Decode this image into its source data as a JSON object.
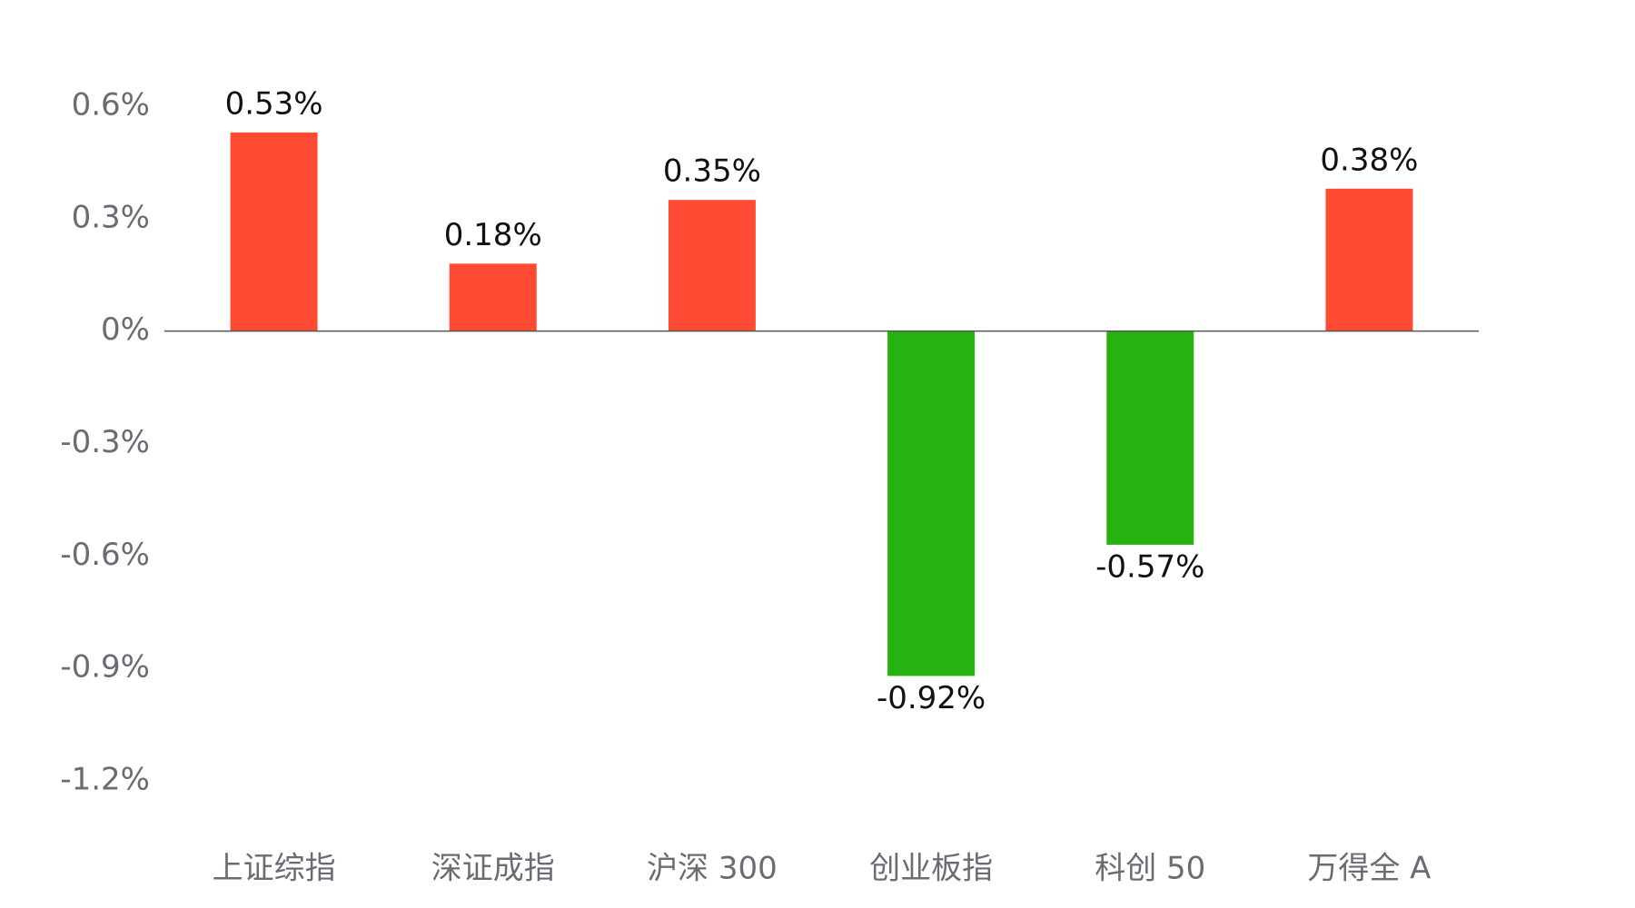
{
  "chart_data": {
    "type": "bar",
    "categories": [
      "上证综指",
      "深证成指",
      "沪深 300",
      "创业板指",
      "科创 50",
      "万得全 A"
    ],
    "values": [
      0.53,
      0.18,
      0.35,
      -0.92,
      -0.57,
      0.38
    ],
    "value_labels": [
      "0.53%",
      "0.18%",
      "0.35%",
      "-0.92%",
      "-0.57%",
      "0.38%"
    ],
    "positive_color": "#ff4b33",
    "negative_color": "#27b30f",
    "ylim": [
      -1.2,
      0.6
    ],
    "yticks": [
      {
        "value": 0.6,
        "label": "0.6%"
      },
      {
        "value": 0.3,
        "label": "0.3%"
      },
      {
        "value": 0,
        "label": "0%"
      },
      {
        "value": -0.3,
        "label": "-0.3%"
      },
      {
        "value": -0.6,
        "label": "-0.6%"
      },
      {
        "value": -0.9,
        "label": "-0.9%"
      },
      {
        "value": -1.2,
        "label": "-1.2%"
      }
    ],
    "grid": false,
    "zero_line": true
  }
}
